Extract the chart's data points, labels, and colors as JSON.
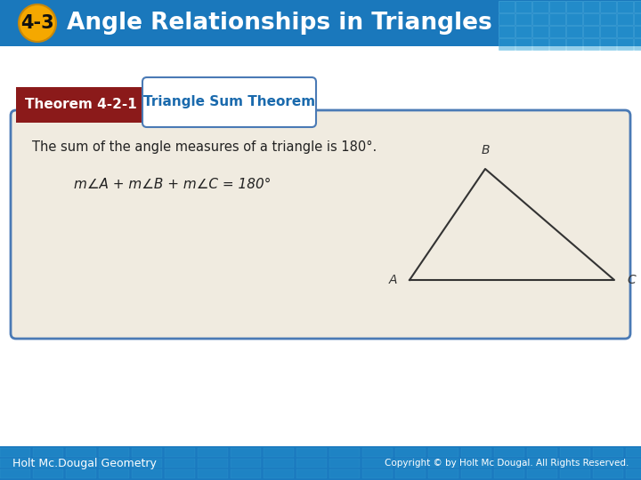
{
  "title_number": "4-3",
  "title_text": "Angle Relationships in Triangles",
  "title_number_bg": "#f5a800",
  "title_text_color": "#ffffff",
  "header_bg": "#1a78bc",
  "theorem_label": "Theorem 4-2-1",
  "theorem_label_bg": "#8b1a1a",
  "theorem_title": "Triangle Sum Theorem",
  "theorem_title_color": "#1a6aad",
  "theorem_body_bg": "#f0ebe0",
  "theorem_body_text": "The sum of the angle measures of a triangle is 180°.",
  "theorem_formula": "m∠A + m∠B + m∠C = 180°",
  "triangle_B": [
    0.615,
    0.735
  ],
  "triangle_A": [
    0.525,
    0.565
  ],
  "triangle_C": [
    0.755,
    0.565
  ],
  "triangle_label_B": "B",
  "triangle_label_A": "A",
  "triangle_label_C": "C",
  "footer_left": "Holt Mc.Dougal Geometry",
  "footer_right": "Copyright © by Holt Mc Dougal. All Rights Reserved.",
  "footer_bg": "#1a7abf",
  "footer_text_color": "#ffffff",
  "bg_color": "#ffffff",
  "border_color": "#4a7ab5"
}
